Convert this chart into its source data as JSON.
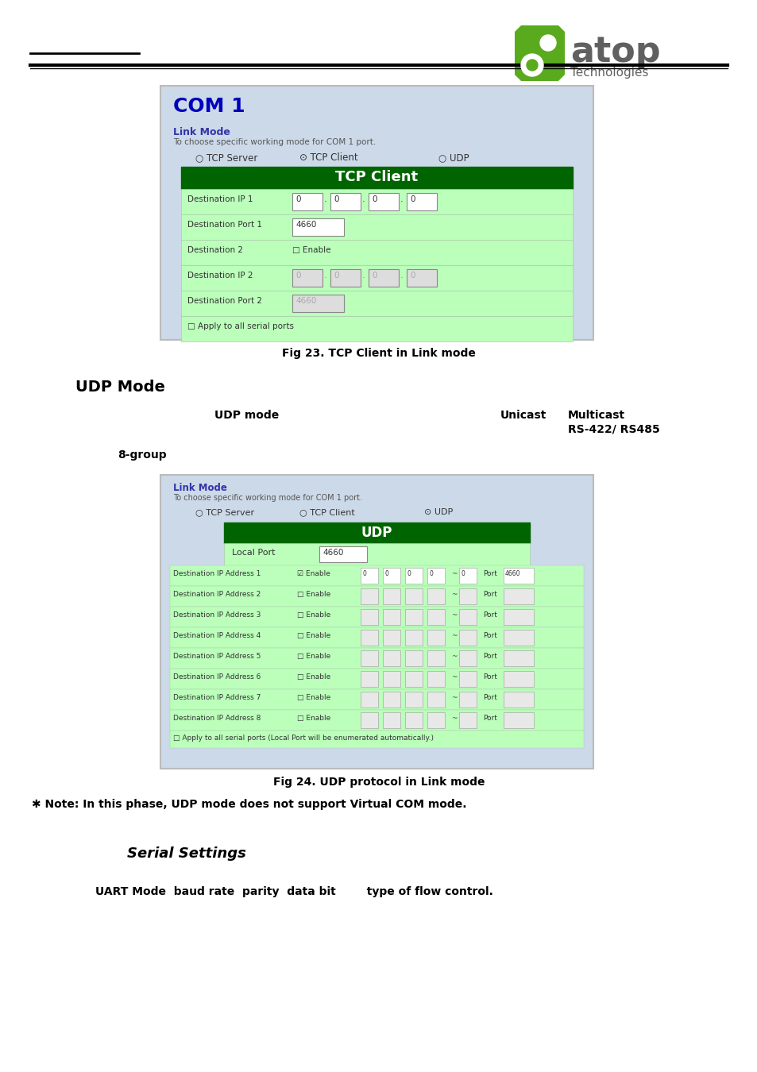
{
  "bg_color": "#ffffff",
  "header_line_color": "#000000",
  "logo_green": "#5aaa1e",
  "logo_gray": "#606060",
  "com1_bg": "#ccd9e8",
  "com1_title_color": "#0000bb",
  "green_header_bg": "#006400",
  "row_bg": "#bbffbb",
  "row_border": "#aaccaa",
  "link_mode_color": "#3333aa",
  "small_gray": "#555555",
  "input_border": "#888888",
  "input_bg_active": "#ffffff",
  "input_bg_gray": "#dddddd",
  "input_text_active": "#333333",
  "input_text_gray": "#999999",
  "fig23_caption": "Fig 23. TCP Client in Link mode",
  "fig24_caption": "Fig 24. UDP protocol in Link mode",
  "note_line": "✱ Note: In this phase, UDP mode does not support Virtual COM mode.",
  "udp_title": "UDP Mode",
  "udp_line1a": "UDP mode",
  "udp_line1b": "Unicast",
  "udp_line1c": "Multicast",
  "udp_line2": "RS-422/ RS485",
  "udp_line3": "8-group",
  "serial_title": "Serial Settings",
  "serial_body": "UART Mode  baud rate  parity  data bit        type of flow control."
}
